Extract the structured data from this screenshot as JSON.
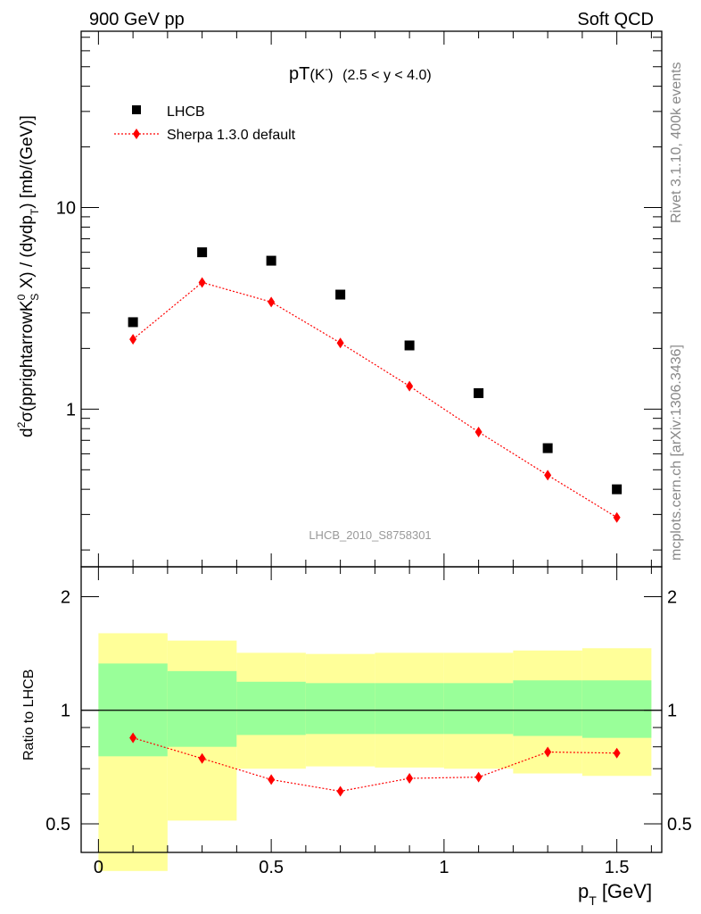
{
  "header": {
    "left": "900 GeV pp",
    "right": "Soft QCD"
  },
  "side_text": {
    "rivet": "Rivet 3.1.10,  400k events",
    "mcplots": "mcplots.cern.ch [arXiv:1306.3436]"
  },
  "chart_data": [
    {
      "type": "scatter",
      "title_main": "pT",
      "title_particle": "(K",
      "title_sup": "-",
      "title_tail": ")",
      "title_range": "(2.5 < y < 4.0)",
      "watermark": "LHCB_2010_S8758301",
      "ylabel": "d²σ(pprightarrowK⁰S X) / (dydpT) [mb/(GeV)]",
      "ylabel_parts": {
        "d": "d",
        "sup2": "2",
        "sigma": "σ(pprightarrowK",
        "sup0": "0",
        "subS": "S",
        "mid": " X) / (dydp",
        "subT": "T",
        "end": ") [mb/(GeV)]"
      },
      "yscale": "log",
      "ylim": [
        0.165,
        75
      ],
      "xlim": [
        -0.05,
        1.63
      ],
      "yticks": [
        {
          "value": 1,
          "label": "1"
        },
        {
          "value": 10,
          "label": "10"
        }
      ],
      "legend_position": "top-left",
      "series": [
        {
          "name": "LHCB",
          "marker": "square",
          "color": "#000000",
          "x": [
            0.1,
            0.3,
            0.5,
            0.7,
            0.9,
            1.1,
            1.3,
            1.5
          ],
          "y": [
            2.7,
            6.0,
            5.45,
            3.7,
            2.07,
            1.2,
            0.64,
            0.4
          ]
        },
        {
          "name": "Sherpa 1.3.0 default",
          "marker": "diamond",
          "line": "dotted",
          "color": "#ff0000",
          "x": [
            0.1,
            0.3,
            0.5,
            0.7,
            0.9,
            1.1,
            1.3,
            1.5
          ],
          "y": [
            2.22,
            4.25,
            3.4,
            2.13,
            1.3,
            0.77,
            0.47,
            0.29
          ]
        }
      ]
    },
    {
      "type": "line",
      "ylabel": "Ratio to LHCB",
      "xlabel_main": "p",
      "xlabel_sub": "T",
      "xlabel_unit": "[GeV]",
      "yscale": "log",
      "ylim": [
        0.42,
        2.4
      ],
      "xlim": [
        -0.05,
        1.63
      ],
      "reference_line": 1,
      "xticks": [
        {
          "value": 0,
          "label": "0"
        },
        {
          "value": 0.5,
          "label": "0.5"
        },
        {
          "value": 1,
          "label": "1"
        },
        {
          "value": 1.5,
          "label": "1.5"
        }
      ],
      "yticks": [
        {
          "value": 0.5,
          "label": "0.5"
        },
        {
          "value": 1,
          "label": "1"
        },
        {
          "value": 2,
          "label": "2"
        }
      ],
      "bands": [
        {
          "xlow": 0.0,
          "xhigh": 0.2,
          "stat_low": 0.755,
          "stat_high": 1.33,
          "total_low": 0.375,
          "total_high": 1.6
        },
        {
          "xlow": 0.2,
          "xhigh": 0.4,
          "stat_low": 0.8,
          "stat_high": 1.27,
          "total_low": 0.51,
          "total_high": 1.53
        },
        {
          "xlow": 0.4,
          "xhigh": 0.6,
          "stat_low": 0.86,
          "stat_high": 1.19,
          "total_low": 0.7,
          "total_high": 1.42
        },
        {
          "xlow": 0.6,
          "xhigh": 0.8,
          "stat_low": 0.865,
          "stat_high": 1.18,
          "total_low": 0.71,
          "total_high": 1.41
        },
        {
          "xlow": 0.8,
          "xhigh": 1.0,
          "stat_low": 0.865,
          "stat_high": 1.18,
          "total_low": 0.705,
          "total_high": 1.42
        },
        {
          "xlow": 1.0,
          "xhigh": 1.2,
          "stat_low": 0.865,
          "stat_high": 1.18,
          "total_low": 0.7,
          "total_high": 1.42
        },
        {
          "xlow": 1.2,
          "xhigh": 1.4,
          "stat_low": 0.855,
          "stat_high": 1.2,
          "total_low": 0.68,
          "total_high": 1.44
        },
        {
          "xlow": 1.4,
          "xhigh": 1.6,
          "stat_low": 0.845,
          "stat_high": 1.2,
          "total_low": 0.67,
          "total_high": 1.46
        }
      ],
      "band_colors": {
        "stat": "#99ff99",
        "total": "#ffff99"
      },
      "series": [
        {
          "name": "Sherpa 1.3.0 default",
          "marker": "diamond",
          "line": "dotted",
          "color": "#ff0000",
          "x": [
            0.1,
            0.3,
            0.5,
            0.7,
            0.9,
            1.1,
            1.3,
            1.5
          ],
          "y": [
            0.845,
            0.745,
            0.655,
            0.61,
            0.66,
            0.665,
            0.775,
            0.77
          ]
        }
      ]
    }
  ]
}
